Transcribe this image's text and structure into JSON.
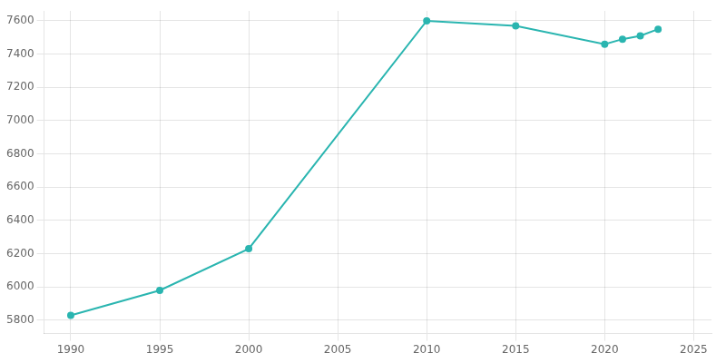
{
  "chart_data": {
    "type": "line",
    "x": [
      1990,
      1995,
      2000,
      2010,
      2015,
      2020,
      2021,
      2022,
      2023
    ],
    "values": [
      5830,
      5980,
      6230,
      7600,
      7570,
      7460,
      7490,
      7510,
      7550
    ],
    "color": "#2ab5b0",
    "marker": "circle",
    "xlim": [
      1988.5,
      2026
    ],
    "ylim": [
      5720,
      7660
    ],
    "xticks": [
      1990,
      1995,
      2000,
      2005,
      2010,
      2015,
      2020,
      2025
    ],
    "yticks": [
      5800,
      6000,
      6200,
      6400,
      6600,
      6800,
      7000,
      7200,
      7400,
      7600
    ],
    "grid": true
  }
}
